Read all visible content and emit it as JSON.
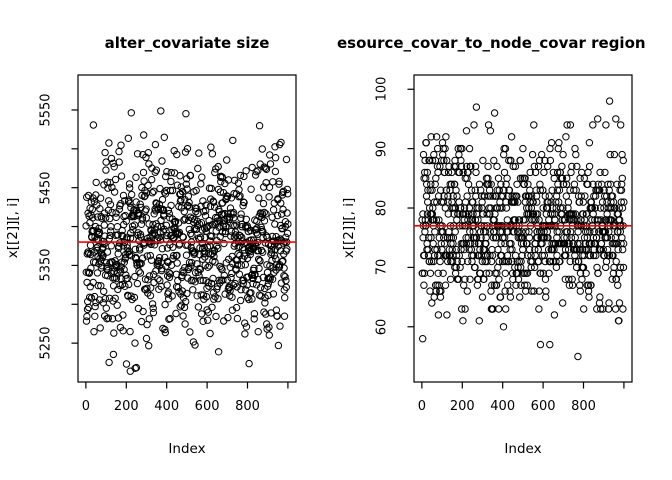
{
  "figure": {
    "background": "#ffffff",
    "foreground": "#000000",
    "red_accent": "#ff0000"
  },
  "chart_data": [
    {
      "type": "scatter",
      "title": "alter_covariate size",
      "xlabel": "Index",
      "ylabel": "x[[2]][, i]",
      "legend": "none",
      "grid": false,
      "n_points": 1000,
      "x_range": [
        1,
        1000
      ],
      "xlim": [
        -39,
        1040
      ],
      "ylim": [
        5200,
        5595
      ],
      "x_ticks": [
        {
          "v": 0,
          "label": "0"
        },
        {
          "v": 200,
          "label": "200"
        },
        {
          "v": 400,
          "label": "400"
        },
        {
          "v": 600,
          "label": "600"
        },
        {
          "v": 800,
          "label": "800"
        },
        {
          "v": 1000,
          "label": ""
        }
      ],
      "y_ticks": [
        {
          "v": 5250,
          "label": "5250"
        },
        {
          "v": 5300,
          "label": ""
        },
        {
          "v": 5350,
          "label": "5350"
        },
        {
          "v": 5400,
          "label": ""
        },
        {
          "v": 5450,
          "label": "5450"
        },
        {
          "v": 5500,
          "label": ""
        },
        {
          "v": 5550,
          "label": "5550"
        }
      ],
      "points": {
        "distribution": "normal",
        "mean": 5380,
        "sd": 58,
        "min": 5210,
        "max": 5578,
        "integer": false,
        "seed": 1234567
      },
      "red_line_y": 5380,
      "red_line_color": "#ff0000",
      "point_style": {
        "shape": "open-circle",
        "radius": 3.2,
        "stroke": "#000000"
      }
    },
    {
      "type": "scatter",
      "title": "esource_covar_to_node_covar region",
      "xlabel": "Index",
      "ylabel": "x[[2]][, i]",
      "legend": "none",
      "grid": false,
      "n_points": 1000,
      "x_range": [
        1,
        1000
      ],
      "xlim": [
        -39,
        1040
      ],
      "ylim": [
        50.7,
        102.4
      ],
      "x_ticks": [
        {
          "v": 0,
          "label": "0"
        },
        {
          "v": 200,
          "label": "200"
        },
        {
          "v": 400,
          "label": "400"
        },
        {
          "v": 600,
          "label": "600"
        },
        {
          "v": 800,
          "label": "800"
        },
        {
          "v": 1000,
          "label": ""
        }
      ],
      "y_ticks": [
        {
          "v": 60,
          "label": "60"
        },
        {
          "v": 70,
          "label": "70"
        },
        {
          "v": 80,
          "label": "80"
        },
        {
          "v": 90,
          "label": "90"
        },
        {
          "v": 100,
          "label": "100"
        }
      ],
      "points": {
        "distribution": "normal",
        "mean": 77,
        "sd": 7,
        "min": 53,
        "max": 100,
        "integer": true,
        "seed": 424242
      },
      "red_line_y": 77,
      "red_line_color": "#ff0000",
      "point_style": {
        "shape": "open-circle",
        "radius": 3.2,
        "stroke": "#000000"
      }
    }
  ]
}
